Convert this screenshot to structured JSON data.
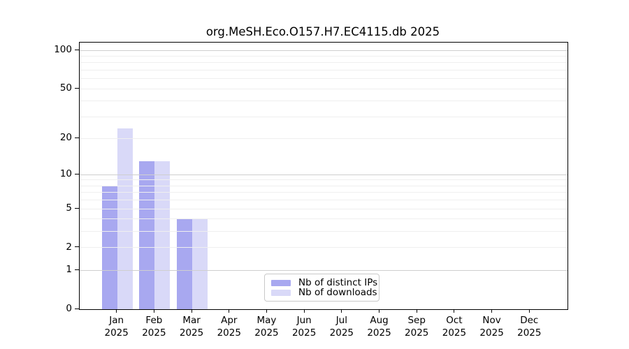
{
  "chart_data": {
    "type": "bar",
    "title": "org.MeSH.Eco.O157.H7.EC4115.db 2025",
    "categories": [
      "Jan",
      "Feb",
      "Mar",
      "Apr",
      "May",
      "Jun",
      "Jul",
      "Aug",
      "Sep",
      "Oct",
      "Nov",
      "Dec"
    ],
    "x_tick_second_line": "2025",
    "series": [
      {
        "name": "Nb of distinct IPs",
        "color": "#a8a8f0",
        "values": [
          8,
          13,
          4,
          0,
          0,
          0,
          0,
          0,
          0,
          0,
          0,
          0
        ]
      },
      {
        "name": "Nb of downloads",
        "color": "#d9d9f8",
        "values": [
          24,
          13,
          4,
          0,
          0,
          0,
          0,
          0,
          0,
          0,
          0,
          0
        ]
      }
    ],
    "y_axis": {
      "scale": "log1p",
      "min": 0,
      "max": 115,
      "tick_values": [
        100,
        50,
        20,
        10,
        5,
        2,
        1,
        0
      ],
      "tick_labels": [
        "100",
        "50",
        "20",
        "10",
        "5",
        "2",
        "1",
        "0"
      ],
      "minor_gridlines": [
        2,
        3,
        4,
        5,
        6,
        7,
        8,
        9,
        20,
        30,
        40,
        50,
        60,
        70,
        80,
        90
      ],
      "major_gridlines": [
        1,
        10,
        100
      ]
    },
    "legend_position": "lower center",
    "grid": true
  },
  "colors": {
    "gridline_minor": "#efefef",
    "gridline_major": "#cfcfcf",
    "axis_spine": "#000000",
    "text": "#000000",
    "legend_border": "#c9c9c9",
    "legend_background": "#ffffff"
  }
}
